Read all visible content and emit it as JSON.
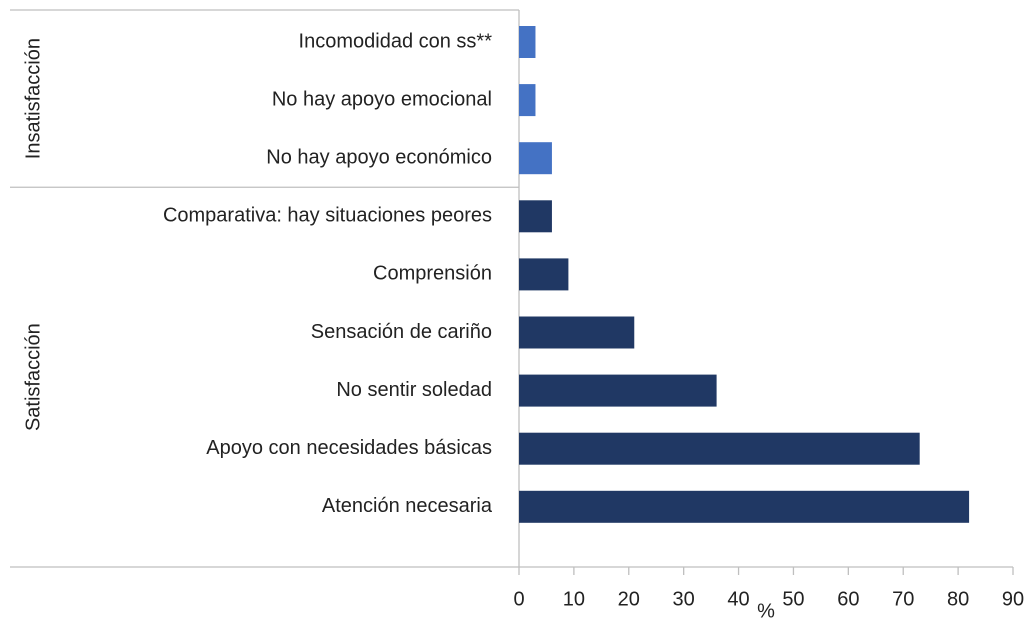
{
  "chart_data": {
    "type": "bar",
    "orientation": "horizontal",
    "groups": [
      {
        "name": "Insatisfacción",
        "color": "#4472c4",
        "categories": [
          "Incomodidad con ss**",
          "No hay apoyo emocional",
          "No hay apoyo económico"
        ],
        "values": [
          3,
          3,
          6
        ]
      },
      {
        "name": "Satisfacción",
        "color": "#203864",
        "categories": [
          "Comparativa: hay situaciones peores",
          "Comprensión",
          "Sensación de cariño",
          "No sentir soledad",
          "Apoyo con necesidades básicas",
          "Atención necesaria"
        ],
        "values": [
          6,
          9,
          21,
          36,
          73,
          82
        ]
      }
    ],
    "x_label": "%",
    "xlim": [
      0,
      90
    ],
    "xticks": [
      0,
      10,
      20,
      30,
      40,
      50,
      60,
      70,
      80,
      90
    ]
  }
}
